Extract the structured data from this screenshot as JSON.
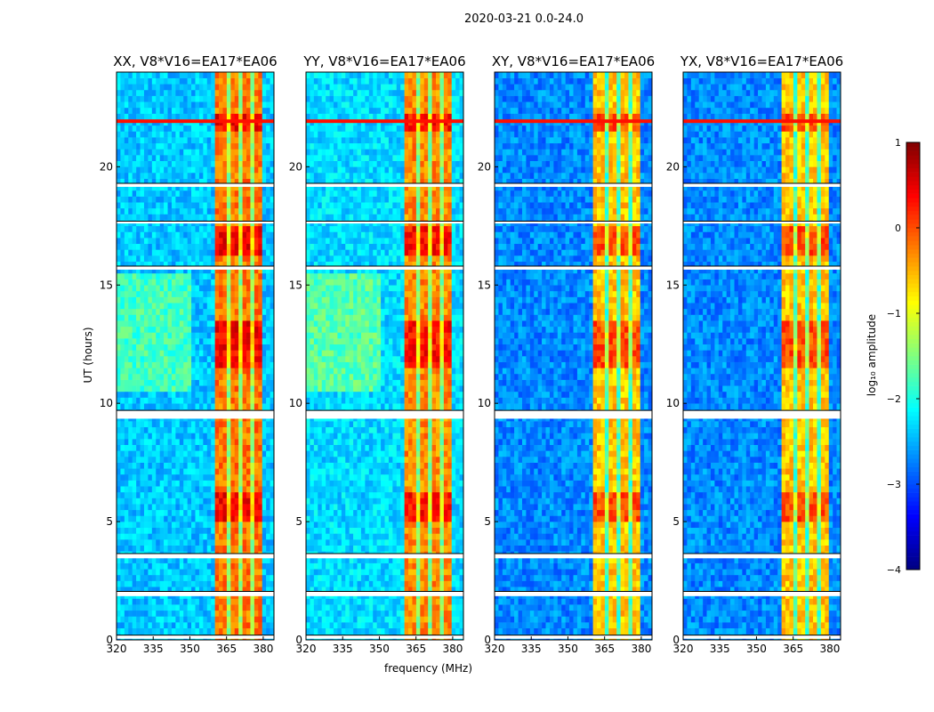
{
  "chart_data": {
    "type": "heatmap",
    "suptitle": "2020-03-21 0.0-24.0",
    "xlabel": "frequency (MHz)",
    "ylabel": "UT (hours)",
    "xlim": [
      320,
      384.4
    ],
    "ylim": [
      0,
      24
    ],
    "xticks": [
      "320",
      "335",
      "350",
      "365",
      "380"
    ],
    "xtick_values": [
      320,
      335,
      350,
      365,
      380
    ],
    "yticks": [
      "0",
      "5",
      "10",
      "15",
      "20"
    ],
    "ytick_values": [
      0,
      5,
      10,
      15,
      20
    ],
    "panels": [
      {
        "title": "XX, V8*V16=EA17*EA06",
        "background_log_amp": -2.4,
        "band_log_amp": 0.2
      },
      {
        "title": "YY, V8*V16=EA17*EA06",
        "background_log_amp": -2.3,
        "band_log_amp": 0.1
      },
      {
        "title": "XY, V8*V16=EA17*EA06",
        "background_log_amp": -2.7,
        "band_log_amp": -0.2
      },
      {
        "title": "YX, V8*V16=EA17*EA06",
        "background_log_amp": -2.7,
        "band_log_amp": -0.2
      }
    ],
    "rfi_band_mhz": [
      361,
      380
    ],
    "rfi_subband_gaps_mhz": [
      366,
      371,
      376
    ],
    "strong_rfi_hours": [
      [
        21.4,
        22.3
      ],
      [
        16.3,
        17.5
      ],
      [
        11.5,
        13.5
      ],
      [
        5.0,
        6.3
      ]
    ],
    "flagged_hours": [
      [
        0.05,
        0.2
      ],
      [
        1.85,
        2.05
      ],
      [
        3.45,
        3.65
      ],
      [
        9.35,
        9.7
      ],
      [
        15.65,
        15.8
      ],
      [
        19.15,
        19.3
      ],
      [
        17.6,
        17.7
      ]
    ],
    "colorbar": {
      "label": "log₁₀ amplitude",
      "range": [
        -4,
        1
      ],
      "ticks": [
        "1",
        "0",
        "−1",
        "−2",
        "−3",
        "−4"
      ],
      "tick_values": [
        1,
        0,
        -1,
        -2,
        -3,
        -4
      ],
      "colormap": "jet"
    }
  }
}
